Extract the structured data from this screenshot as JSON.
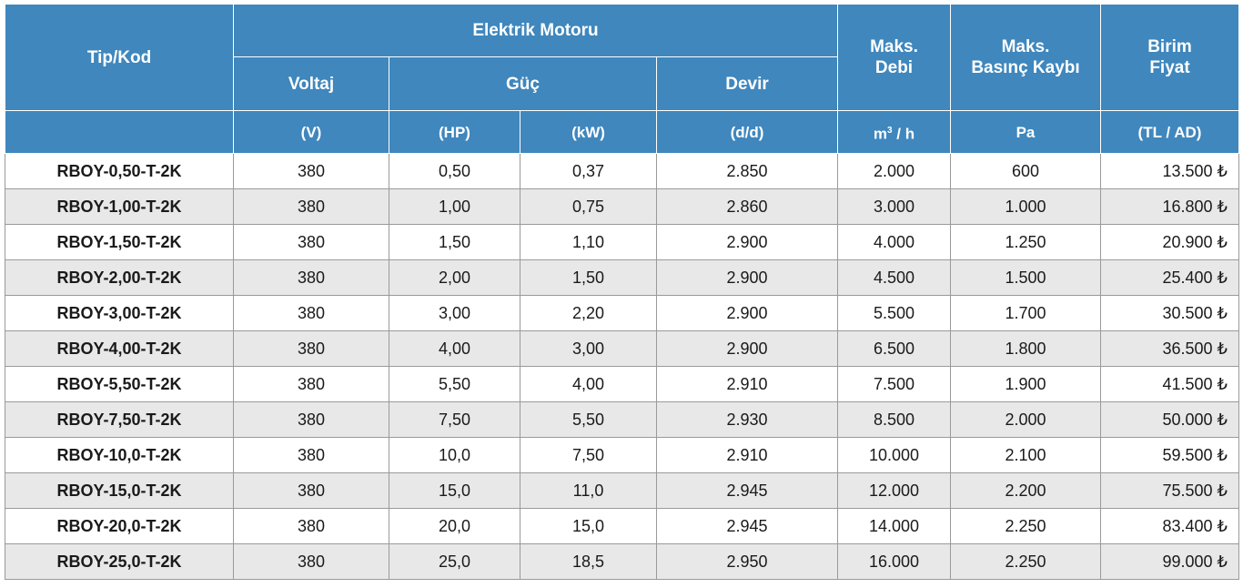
{
  "header": {
    "tip_kod": "Tip/Kod",
    "elektrik_motoru": "Elektrik Motoru",
    "voltaj": "Voltaj",
    "guc": "Güç",
    "devir": "Devir",
    "maks_debi_line1": "Maks.",
    "maks_debi_line2": "Debi",
    "maks_basinc_line1": "Maks.",
    "maks_basinc_line2": "Basınç Kaybı",
    "birim_fiyat_line1": "Birim",
    "birim_fiyat_line2": "Fiyat",
    "unit_v": "(V)",
    "unit_hp": "(HP)",
    "unit_kw": "(kW)",
    "unit_dd": "(d/d)",
    "unit_m3h_base": "m",
    "unit_m3h_sup": "3",
    "unit_m3h_rest": "/ h",
    "unit_pa": "Pa",
    "unit_tl_ad": "(TL / AD)"
  },
  "rows": [
    {
      "code": "RBOY-0,50-T-2K",
      "voltage": "380",
      "hp": "0,50",
      "kw": "0,37",
      "rpm": "2.850",
      "flow": "2.000",
      "pressure": "600",
      "price": "13.500 ₺"
    },
    {
      "code": "RBOY-1,00-T-2K",
      "voltage": "380",
      "hp": "1,00",
      "kw": "0,75",
      "rpm": "2.860",
      "flow": "3.000",
      "pressure": "1.000",
      "price": "16.800 ₺"
    },
    {
      "code": "RBOY-1,50-T-2K",
      "voltage": "380",
      "hp": "1,50",
      "kw": "1,10",
      "rpm": "2.900",
      "flow": "4.000",
      "pressure": "1.250",
      "price": "20.900 ₺"
    },
    {
      "code": "RBOY-2,00-T-2K",
      "voltage": "380",
      "hp": "2,00",
      "kw": "1,50",
      "rpm": "2.900",
      "flow": "4.500",
      "pressure": "1.500",
      "price": "25.400 ₺"
    },
    {
      "code": "RBOY-3,00-T-2K",
      "voltage": "380",
      "hp": "3,00",
      "kw": "2,20",
      "rpm": "2.900",
      "flow": "5.500",
      "pressure": "1.700",
      "price": "30.500 ₺"
    },
    {
      "code": "RBOY-4,00-T-2K",
      "voltage": "380",
      "hp": "4,00",
      "kw": "3,00",
      "rpm": "2.900",
      "flow": "6.500",
      "pressure": "1.800",
      "price": "36.500 ₺"
    },
    {
      "code": "RBOY-5,50-T-2K",
      "voltage": "380",
      "hp": "5,50",
      "kw": "4,00",
      "rpm": "2.910",
      "flow": "7.500",
      "pressure": "1.900",
      "price": "41.500 ₺"
    },
    {
      "code": "RBOY-7,50-T-2K",
      "voltage": "380",
      "hp": "7,50",
      "kw": "5,50",
      "rpm": "2.930",
      "flow": "8.500",
      "pressure": "2.000",
      "price": "50.000 ₺"
    },
    {
      "code": "RBOY-10,0-T-2K",
      "voltage": "380",
      "hp": "10,0",
      "kw": "7,50",
      "rpm": "2.910",
      "flow": "10.000",
      "pressure": "2.100",
      "price": "59.500 ₺"
    },
    {
      "code": "RBOY-15,0-T-2K",
      "voltage": "380",
      "hp": "15,0",
      "kw": "11,0",
      "rpm": "2.945",
      "flow": "12.000",
      "pressure": "2.200",
      "price": "75.500 ₺"
    },
    {
      "code": "RBOY-20,0-T-2K",
      "voltage": "380",
      "hp": "20,0",
      "kw": "15,0",
      "rpm": "2.945",
      "flow": "14.000",
      "pressure": "2.250",
      "price": "83.400 ₺"
    },
    {
      "code": "RBOY-25,0-T-2K",
      "voltage": "380",
      "hp": "25,0",
      "kw": "18,5",
      "rpm": "2.950",
      "flow": "16.000",
      "pressure": "2.250",
      "price": "99.000 ₺"
    }
  ],
  "colors": {
    "header_bg": "#3f87bd",
    "header_text": "#ffffff",
    "alt_row_bg": "#e8e8e8"
  }
}
